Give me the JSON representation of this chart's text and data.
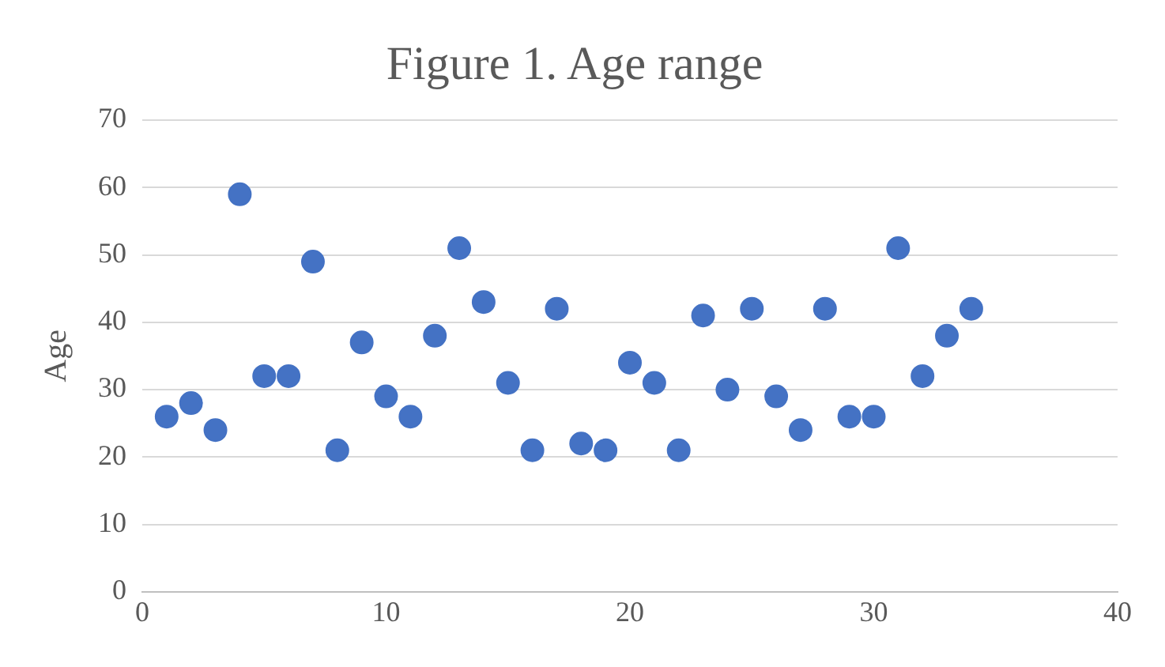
{
  "chart_data": {
    "type": "scatter",
    "title": "Figure 1. Age range",
    "ylabel": "Age",
    "x": [
      1,
      2,
      3,
      4,
      5,
      6,
      7,
      8,
      9,
      10,
      11,
      12,
      13,
      14,
      15,
      16,
      17,
      18,
      19,
      20,
      21,
      22,
      23,
      24,
      25,
      26,
      27,
      28,
      29,
      30,
      31,
      32,
      33,
      34
    ],
    "series": [
      {
        "color": "#4472c4",
        "values": [
          26,
          28,
          24,
          59,
          32,
          32,
          49,
          21,
          37,
          29,
          26,
          38,
          51,
          43,
          31,
          21,
          42,
          22,
          21,
          34,
          31,
          21,
          41,
          30,
          42,
          29,
          24,
          42,
          26,
          26,
          51,
          32,
          38,
          42
        ]
      }
    ],
    "xlim": [
      0,
      40
    ],
    "xticks": [
      0,
      10,
      20,
      30,
      40
    ],
    "ylim": [
      0,
      70
    ],
    "yticks": [
      0,
      10,
      20,
      30,
      40,
      50,
      60,
      70
    ],
    "grid": "y",
    "legend": false,
    "marker": "circle"
  }
}
